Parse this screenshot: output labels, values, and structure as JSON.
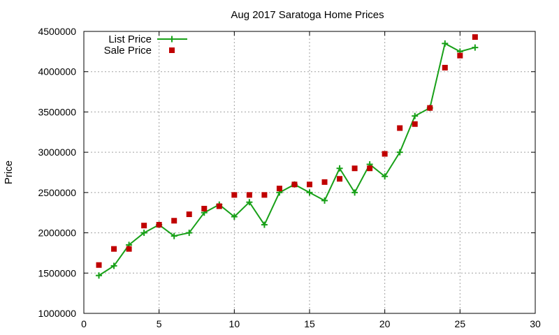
{
  "chart_data": {
    "type": "line",
    "title": "Aug 2017 Saratoga Home Prices",
    "xlabel": "",
    "ylabel": "Price",
    "xlim": [
      0,
      30
    ],
    "ylim": [
      1000000,
      4500000
    ],
    "xticks": [
      0,
      5,
      10,
      15,
      20,
      25,
      30
    ],
    "yticks": [
      1000000,
      1500000,
      2000000,
      2500000,
      3000000,
      3500000,
      4000000,
      4500000
    ],
    "grid": true,
    "legend_position": "top-left",
    "series": [
      {
        "name": "List Price",
        "style": "line-with-plus-markers",
        "color": "#18a018",
        "x": [
          1,
          2,
          3,
          4,
          5,
          6,
          7,
          8,
          9,
          10,
          11,
          12,
          13,
          14,
          15,
          16,
          17,
          18,
          19,
          20,
          21,
          22,
          23,
          24,
          25,
          26
        ],
        "y": [
          1470000,
          1590000,
          1850000,
          2000000,
          2100000,
          1960000,
          2000000,
          2250000,
          2350000,
          2200000,
          2380000,
          2100000,
          2500000,
          2600000,
          2500000,
          2400000,
          2800000,
          2500000,
          2850000,
          2700000,
          3000000,
          3450000,
          3550000,
          4350000,
          4250000,
          4300000
        ]
      },
      {
        "name": "Sale Price",
        "style": "square-markers",
        "color": "#c00000",
        "x": [
          1,
          2,
          3,
          4,
          5,
          6,
          7,
          8,
          9,
          10,
          11,
          12,
          13,
          14,
          15,
          16,
          17,
          18,
          19,
          20,
          21,
          22,
          23,
          24,
          25,
          26
        ],
        "y": [
          1600000,
          1800000,
          1800000,
          2090000,
          2100000,
          2150000,
          2230000,
          2300000,
          2330000,
          2470000,
          2470000,
          2470000,
          2550000,
          2600000,
          2600000,
          2630000,
          2670000,
          2800000,
          2800000,
          2980000,
          3300000,
          3350000,
          3550000,
          4050000,
          4200000,
          4430000
        ]
      }
    ]
  }
}
